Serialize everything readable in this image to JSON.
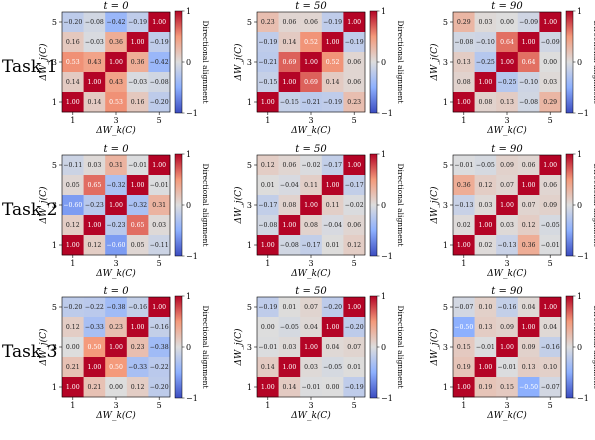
{
  "figure": {
    "x_axis_label": "ΔW_k(C)",
    "y_axis_label": "ΔW_j(C)",
    "colorbar_label": "Directional alignment",
    "colorbar_ticks": [
      "1",
      "0",
      "−1"
    ],
    "axis_ticks": [
      "1",
      "3",
      "5"
    ]
  },
  "row_labels": [
    "Task 1",
    "Task 2",
    "Task 3"
  ],
  "col_titles": [
    "t = 0",
    "t = 50",
    "t = 90"
  ],
  "chart_data": {
    "type": "heatmap",
    "value_range": [
      -1,
      1
    ],
    "colormap": "coolwarm",
    "row_order_top_to_bottom": [
      5,
      4,
      3,
      2,
      1
    ],
    "col_order_left_to_right": [
      1,
      2,
      3,
      4,
      5
    ],
    "panels": [
      {
        "task": "Task 1",
        "title": "t = 0",
        "matrix": [
          [
            -0.2,
            -0.08,
            -0.42,
            -0.19,
            1.0
          ],
          [
            0.16,
            -0.03,
            0.36,
            1.0,
            -0.19
          ],
          [
            0.53,
            0.43,
            1.0,
            0.36,
            -0.42
          ],
          [
            0.14,
            1.0,
            0.43,
            -0.03,
            -0.08
          ],
          [
            1.0,
            0.14,
            0.53,
            0.16,
            -0.2
          ]
        ]
      },
      {
        "task": "Task 1",
        "title": "t = 50",
        "matrix": [
          [
            0.23,
            0.06,
            0.06,
            -0.19,
            1.0
          ],
          [
            -0.19,
            0.14,
            0.52,
            1.0,
            -0.19
          ],
          [
            -0.21,
            0.69,
            1.0,
            0.52,
            0.06
          ],
          [
            -0.15,
            1.0,
            0.69,
            0.14,
            0.06
          ],
          [
            1.0,
            -0.15,
            -0.21,
            -0.19,
            0.23
          ]
        ]
      },
      {
        "task": "Task 1",
        "title": "t = 90",
        "matrix": [
          [
            0.29,
            0.03,
            0.0,
            -0.09,
            1.0
          ],
          [
            -0.08,
            -0.1,
            0.64,
            1.0,
            -0.09
          ],
          [
            0.13,
            -0.25,
            1.0,
            0.64,
            0.0
          ],
          [
            0.08,
            1.0,
            -0.25,
            -0.1,
            0.03
          ],
          [
            1.0,
            0.08,
            0.13,
            -0.08,
            0.29
          ]
        ]
      },
      {
        "task": "Task 2",
        "title": "t = 0",
        "matrix": [
          [
            -0.11,
            0.03,
            0.31,
            -0.01,
            1.0
          ],
          [
            0.05,
            0.65,
            -0.32,
            1.0,
            -0.01
          ],
          [
            -0.6,
            -0.23,
            1.0,
            -0.32,
            0.31
          ],
          [
            0.12,
            1.0,
            -0.23,
            0.65,
            0.03
          ],
          [
            1.0,
            0.12,
            -0.6,
            0.05,
            -0.11
          ]
        ]
      },
      {
        "task": "Task 2",
        "title": "t = 50",
        "matrix": [
          [
            0.12,
            0.06,
            -0.02,
            -0.17,
            1.0
          ],
          [
            0.01,
            -0.04,
            0.11,
            1.0,
            -0.17
          ],
          [
            -0.17,
            0.08,
            1.0,
            0.11,
            -0.02
          ],
          [
            -0.08,
            1.0,
            0.08,
            -0.04,
            0.06
          ],
          [
            1.0,
            -0.08,
            -0.17,
            0.01,
            0.12
          ]
        ]
      },
      {
        "task": "Task 2",
        "title": "t = 90",
        "matrix": [
          [
            -0.01,
            -0.05,
            0.09,
            0.06,
            1.0
          ],
          [
            0.36,
            0.12,
            0.07,
            1.0,
            0.06
          ],
          [
            -0.13,
            0.03,
            1.0,
            0.07,
            0.09
          ],
          [
            0.02,
            1.0,
            0.03,
            0.12,
            -0.05
          ],
          [
            1.0,
            0.02,
            -0.13,
            0.36,
            -0.01
          ]
        ]
      },
      {
        "task": "Task 3",
        "title": "t = 0",
        "matrix": [
          [
            -0.2,
            -0.22,
            -0.38,
            -0.16,
            1.0
          ],
          [
            0.12,
            -0.33,
            0.23,
            1.0,
            -0.16
          ],
          [
            0.0,
            0.5,
            1.0,
            0.23,
            -0.38
          ],
          [
            0.21,
            1.0,
            0.5,
            -0.33,
            -0.22
          ],
          [
            1.0,
            0.21,
            0.0,
            0.12,
            -0.2
          ]
        ]
      },
      {
        "task": "Task 3",
        "title": "t = 50",
        "matrix": [
          [
            -0.19,
            0.01,
            0.07,
            -0.2,
            1.0
          ],
          [
            0.0,
            -0.05,
            0.04,
            1.0,
            -0.2
          ],
          [
            -0.01,
            0.03,
            1.0,
            0.04,
            0.07
          ],
          [
            0.14,
            1.0,
            0.03,
            -0.05,
            0.01
          ],
          [
            1.0,
            0.14,
            -0.01,
            0.0,
            -0.19
          ]
        ]
      },
      {
        "task": "Task 3",
        "title": "t = 90",
        "matrix": [
          [
            -0.07,
            0.1,
            -0.16,
            0.04,
            1.0
          ],
          [
            -0.5,
            0.13,
            0.09,
            1.0,
            0.04
          ],
          [
            0.15,
            -0.01,
            1.0,
            0.09,
            -0.16
          ],
          [
            0.19,
            1.0,
            -0.01,
            0.13,
            0.1
          ],
          [
            1.0,
            0.19,
            0.15,
            -0.5,
            -0.07
          ]
        ]
      }
    ]
  }
}
